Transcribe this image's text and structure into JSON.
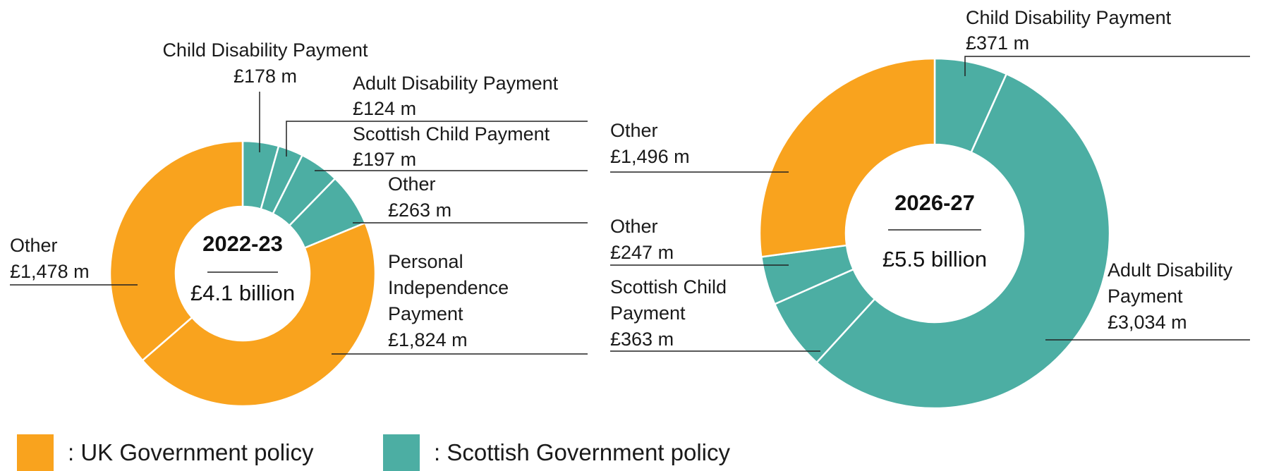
{
  "colors": {
    "uk": "#F9A31E",
    "scottish": "#4CAEA3"
  },
  "legend": [
    {
      "key": "uk",
      "label": ": UK Government policy"
    },
    {
      "key": "scottish",
      "label": ": Scottish Government policy"
    }
  ],
  "chart_data": [
    {
      "type": "pie",
      "variant": "donut",
      "title": "2022-23",
      "total_label": "£4.1 billion",
      "slices": [
        {
          "name": "Child Disability Payment",
          "value": 178,
          "value_label": "£178 m",
          "group": "scottish"
        },
        {
          "name": "Adult Disability Payment",
          "value": 124,
          "value_label": "£124 m",
          "group": "scottish"
        },
        {
          "name": "Scottish Child Payment",
          "value": 197,
          "value_label": "£197 m",
          "group": "scottish"
        },
        {
          "name": "Other",
          "value": 263,
          "value_label": "£263 m",
          "group": "scottish"
        },
        {
          "name": "Personal Independence Payment",
          "value": 1824,
          "value_label": "£1,824 m",
          "group": "uk"
        },
        {
          "name": "Other",
          "value": 1478,
          "value_label": "£1,478 m",
          "group": "uk"
        }
      ]
    },
    {
      "type": "pie",
      "variant": "donut",
      "title": "2026-27",
      "total_label": "£5.5 billion",
      "slices": [
        {
          "name": "Child Disability Payment",
          "value": 371,
          "value_label": "£371 m",
          "group": "scottish"
        },
        {
          "name": "Adult Disability Payment",
          "value": 3034,
          "value_label": "£3,034 m",
          "group": "scottish"
        },
        {
          "name": "Scottish Child Payment",
          "value": 363,
          "value_label": "£363 m",
          "group": "scottish"
        },
        {
          "name": "Other",
          "value": 247,
          "value_label": "£247 m",
          "group": "scottish"
        },
        {
          "name": "Other",
          "value": 1496,
          "value_label": "£1,496 m",
          "group": "uk"
        }
      ]
    }
  ]
}
